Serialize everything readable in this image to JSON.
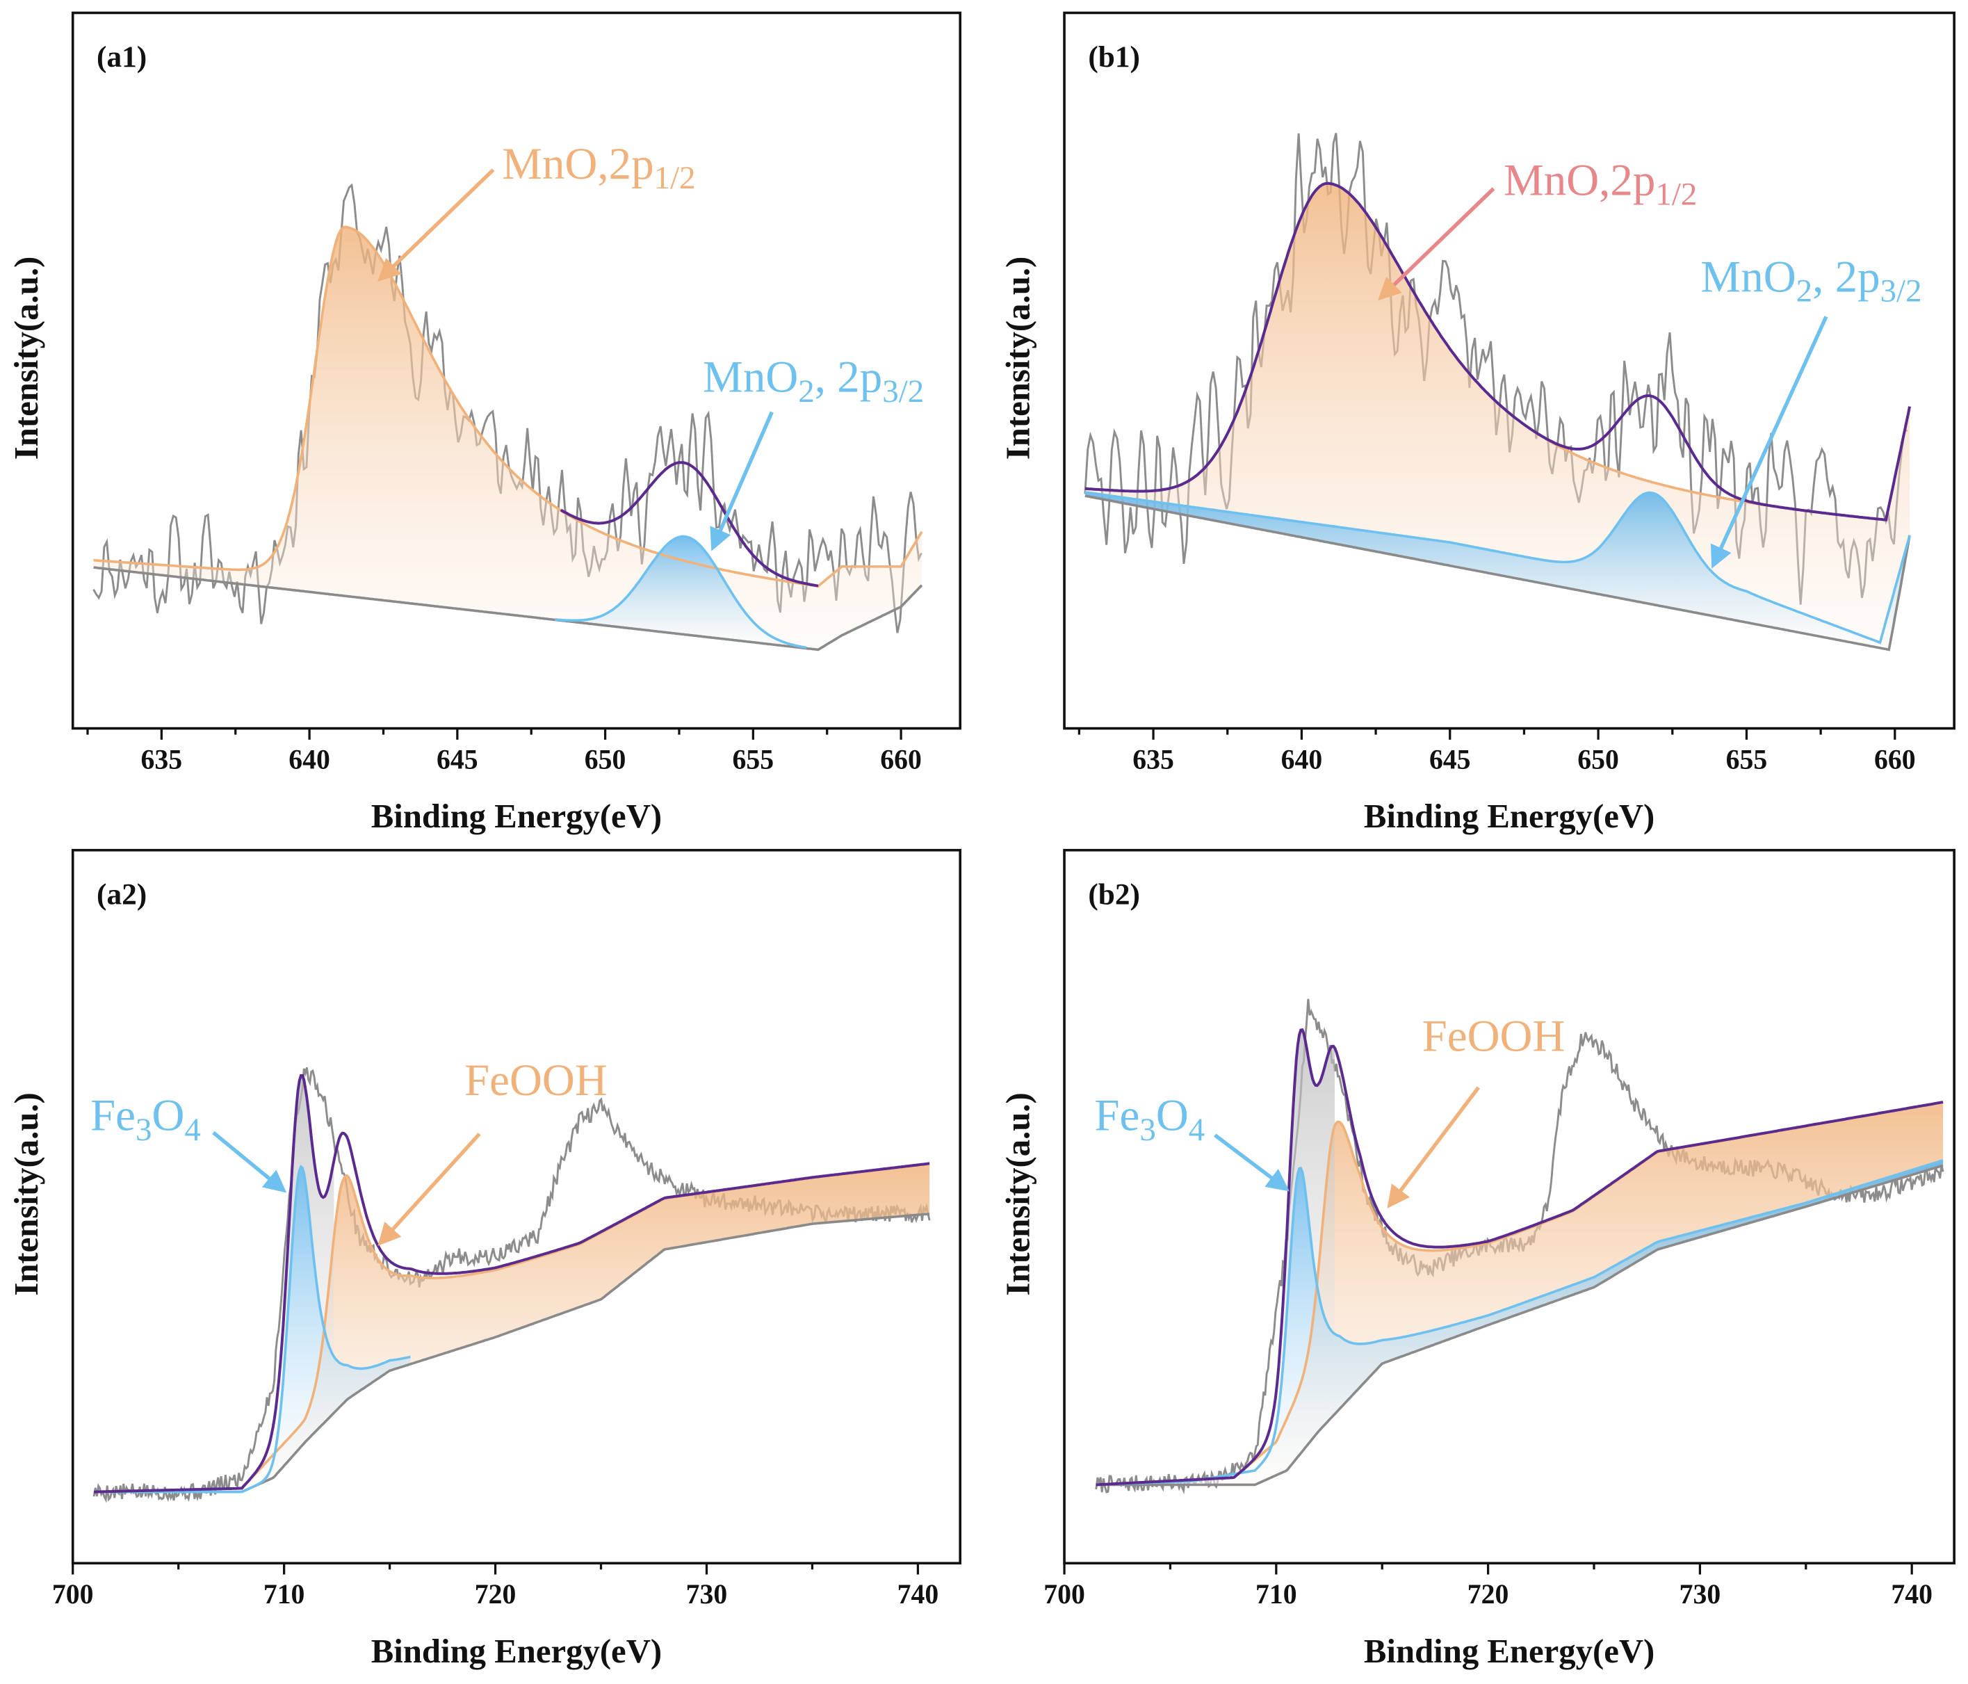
{
  "colors": {
    "raw": "#8c8c8c",
    "background": "#8a8a8a",
    "orange": "#f0b27a",
    "blue": "#6ec1ee",
    "envelope": "#5b2a8f",
    "pink": "#e8878a",
    "axis": "#111111"
  },
  "chart_data": [
    {
      "id": "a1",
      "type": "line",
      "label": "(a1)",
      "xlabel": "Binding Energy(eV)",
      "ylabel": "Intensity(a.u.)",
      "xlim": [
        632,
        662
      ],
      "ylim": [
        0,
        1
      ],
      "xticks": [
        635,
        640,
        645,
        650,
        655,
        660
      ],
      "minor_step": 2.5,
      "range": [
        632.7,
        660.7
      ],
      "background": [
        [
          632.7,
          0.225
        ],
        [
          657.2,
          0.11
        ],
        [
          658,
          0.13
        ],
        [
          660,
          0.17
        ],
        [
          660.7,
          0.2
        ]
      ],
      "components": [
        {
          "name": "MnO, 2p1/2",
          "color": "#f0b27a",
          "range": [
            632.7,
            660.7
          ],
          "baseline": [
            [
              632.7,
              0.235
            ],
            [
              645,
              0.2
            ],
            [
              657.2,
              0.17
            ],
            [
              658,
              0.2
            ],
            [
              660,
              0.205
            ],
            [
              660.7,
              0.255
            ]
          ],
          "peak": {
            "center": 641.2,
            "amp": 0.49,
            "left": {
              "type": "gauss",
              "w": 1.0
            },
            "right": {
              "type": "lorentz",
              "w": 4.0
            }
          }
        },
        {
          "name": "MnO2, 2p3/2",
          "color": "#6ec1ee",
          "range": [
            648.3,
            656.8
          ],
          "baseline": [
            [
              632.7,
              0.225
            ],
            [
              657.2,
              0.11
            ]
          ],
          "peak": {
            "center": 652.7,
            "amp": 0.137,
            "left": {
              "type": "gauss",
              "w": 1.3
            },
            "right": {
              "type": "gauss",
              "w": 1.3
            }
          }
        }
      ],
      "envelope": {
        "range": [
          648.5,
          657.2
        ],
        "extra_peak": null
      },
      "raw": {
        "points": null,
        "noise": 0.11,
        "seed": 11
      },
      "annotations": [
        {
          "parts": [
            {
              "t": "MnO,2p"
            },
            {
              "t": "1/2",
              "sub": true
            }
          ],
          "color": "#f0b27a"
        },
        {
          "parts": [
            {
              "t": "MnO"
            },
            {
              "t": "2",
              "sub": true
            },
            {
              "t": ", 2p"
            },
            {
              "t": "3/2",
              "sub": true
            }
          ],
          "color": "#6ec1ee"
        }
      ]
    },
    {
      "id": "b1",
      "type": "line",
      "label": "(b1)",
      "xlabel": "Binding Energy(eV)",
      "ylabel": "Intensity(a.u.)",
      "xlim": [
        632,
        662
      ],
      "ylim": [
        0,
        1
      ],
      "xticks": [
        635,
        640,
        645,
        650,
        655,
        660
      ],
      "minor_step": 2.5,
      "range": [
        632.7,
        660.5
      ],
      "background": [
        [
          632.7,
          0.325
        ],
        [
          659.8,
          0.11
        ],
        [
          660.2,
          0.2
        ],
        [
          660.5,
          0.27
        ]
      ],
      "components": [
        {
          "name": "MnO, 2p1/2",
          "color": "#f0b27a",
          "range": [
            632.7,
            660.5
          ],
          "baseline": [
            [
              632.7,
              0.335
            ],
            [
              645,
              0.3
            ],
            [
              659.7,
              0.27
            ],
            [
              660.5,
              0.43
            ]
          ],
          "peak": {
            "center": 640.9,
            "amp": 0.45,
            "left": {
              "type": "gauss",
              "w": 1.9
            },
            "right": {
              "type": "lorentz",
              "w": 4.2
            }
          }
        },
        {
          "name": "MnO2, 2p3/2",
          "color": "#6ec1ee",
          "range": [
            632.7,
            660.5
          ],
          "baseline": [
            [
              632.7,
              0.33
            ],
            [
              645,
              0.26
            ],
            [
              650,
              0.22
            ],
            [
              655,
              0.19
            ],
            [
              659.5,
              0.12
            ],
            [
              660.5,
              0.27
            ]
          ],
          "peak": {
            "center": 651.8,
            "amp": 0.12,
            "left": {
              "type": "gauss",
              "w": 1.1
            },
            "right": {
              "type": "gauss",
              "w": 1.1
            }
          }
        }
      ],
      "envelope": {
        "range": [
          632.7,
          660.5
        ],
        "extra_peak": null
      },
      "raw": {
        "points": null,
        "noise": 0.15,
        "seed": 29
      },
      "annotations": [
        {
          "parts": [
            {
              "t": "MnO,2p"
            },
            {
              "t": "1/2",
              "sub": true
            }
          ],
          "color": "#e8878a"
        },
        {
          "parts": [
            {
              "t": "MnO"
            },
            {
              "t": "2",
              "sub": true
            },
            {
              "t": ", 2p"
            },
            {
              "t": "3/2",
              "sub": true
            }
          ],
          "color": "#6ec1ee"
        }
      ]
    },
    {
      "id": "a2",
      "type": "line",
      "label": "(a2)",
      "xlabel": "Binding Energy(eV)",
      "ylabel": "Intensity(a.u.)",
      "xlim": [
        700,
        742
      ],
      "ylim": [
        0,
        1
      ],
      "xticks": [
        700,
        710,
        720,
        730,
        740
      ],
      "minor_step": 5,
      "range": [
        701,
        740.6
      ],
      "background": [
        [
          701,
          0.1
        ],
        [
          708,
          0.1
        ],
        [
          709.5,
          0.12
        ],
        [
          711,
          0.17
        ],
        [
          713,
          0.23
        ],
        [
          715,
          0.27
        ],
        [
          720,
          0.317
        ],
        [
          725,
          0.37
        ],
        [
          728,
          0.44
        ],
        [
          735,
          0.476
        ],
        [
          740.6,
          0.49
        ]
      ],
      "components": [
        {
          "name": "FeOOH",
          "color": "#f0b27a",
          "range": [
            701,
            740.6
          ],
          "baseline": [
            [
              701,
              0.1
            ],
            [
              708,
              0.105
            ],
            [
              711,
              0.2
            ],
            [
              713,
              0.32
            ],
            [
              716,
              0.375
            ],
            [
              720,
              0.405
            ],
            [
              724,
              0.445
            ],
            [
              728,
              0.51
            ],
            [
              735,
              0.54
            ],
            [
              740.6,
              0.56
            ]
          ],
          "peak": {
            "center": 712.8,
            "amp": 0.23,
            "left": {
              "type": "gauss",
              "w": 0.6
            },
            "right": {
              "type": "lorentz",
              "w": 1.2
            }
          }
        },
        {
          "name": "Fe3O4",
          "color": "#6ec1ee",
          "range": [
            701,
            716
          ],
          "baseline": [
            [
              701,
              0.1
            ],
            [
              708,
              0.1
            ],
            [
              709.5,
              0.12
            ],
            [
              711,
              0.15
            ],
            [
              713,
              0.23
            ],
            [
              715,
              0.27
            ],
            [
              716,
              0.28
            ]
          ],
          "peak": {
            "center": 710.8,
            "amp": 0.41,
            "left": {
              "type": "gauss",
              "w": 0.55
            },
            "right": {
              "type": "lorentz",
              "w": 0.8
            }
          }
        }
      ],
      "envelope": {
        "range": [
          701,
          740.6
        ],
        "extra_peak": {
          "center": 710.9,
          "amp": 0.08,
          "left": {
            "type": "gauss",
            "w": 0.8
          },
          "right": {
            "type": "gauss",
            "w": 0.9
          }
        }
      },
      "raw": {
        "points": [
          [
            701,
            0.1
          ],
          [
            706,
            0.1
          ],
          [
            708,
            0.12
          ],
          [
            709.5,
            0.25
          ],
          [
            710.5,
            0.6
          ],
          [
            711,
            0.695
          ],
          [
            711.8,
            0.66
          ],
          [
            712.5,
            0.58
          ],
          [
            713.5,
            0.46
          ],
          [
            715,
            0.41
          ],
          [
            716.5,
            0.395
          ],
          [
            718,
            0.43
          ],
          [
            720,
            0.43
          ],
          [
            722,
            0.46
          ],
          [
            723,
            0.55
          ],
          [
            724,
            0.62
          ],
          [
            725,
            0.64
          ],
          [
            726,
            0.6
          ],
          [
            727,
            0.56
          ],
          [
            728.5,
            0.53
          ],
          [
            730,
            0.51
          ],
          [
            732,
            0.505
          ],
          [
            735,
            0.49
          ],
          [
            738,
            0.49
          ],
          [
            740.6,
            0.49
          ]
        ],
        "noise": 0.012,
        "seed": 5
      },
      "annotations": [
        {
          "parts": [
            {
              "t": "Fe"
            },
            {
              "t": "3",
              "sub": true
            },
            {
              "t": "O"
            },
            {
              "t": "4",
              "sub": true
            }
          ],
          "color": "#6ec1ee"
        },
        {
          "parts": [
            {
              "t": "FeOOH"
            }
          ],
          "color": "#f0b27a"
        }
      ]
    },
    {
      "id": "b2",
      "type": "line",
      "label": "(b2)",
      "xlabel": "Binding Energy(eV)",
      "ylabel": "Intensity(a.u.)",
      "xlim": [
        700,
        742
      ],
      "ylim": [
        0,
        1
      ],
      "xticks": [
        700,
        710,
        720,
        730,
        740
      ],
      "minor_step": 5,
      "range": [
        701.5,
        741.5
      ],
      "background": [
        [
          701.5,
          0.11
        ],
        [
          709,
          0.11
        ],
        [
          710.5,
          0.13
        ],
        [
          712,
          0.185
        ],
        [
          715,
          0.28
        ],
        [
          720,
          0.334
        ],
        [
          725,
          0.387
        ],
        [
          728,
          0.44
        ],
        [
          735,
          0.5
        ],
        [
          741.5,
          0.558
        ]
      ],
      "components": [
        {
          "name": "FeOOH",
          "color": "#f0b27a",
          "range": [
            701.5,
            741.5
          ],
          "baseline": [
            [
              701.5,
              0.11
            ],
            [
              708,
              0.12
            ],
            [
              710,
              0.17
            ],
            [
              712,
              0.3
            ],
            [
              714,
              0.39
            ],
            [
              716.5,
              0.41
            ],
            [
              720,
              0.44
            ],
            [
              724,
              0.49
            ],
            [
              728,
              0.575
            ],
            [
              735,
              0.612
            ],
            [
              741.5,
              0.646
            ]
          ],
          "peak": {
            "center": 712.8,
            "amp": 0.28,
            "left": {
              "type": "gauss",
              "w": 0.6
            },
            "right": {
              "type": "lorentz",
              "w": 1.3
            }
          }
        },
        {
          "name": "Fe3O4",
          "color": "#6ec1ee",
          "range": [
            701.5,
            741.5
          ],
          "baseline": [
            [
              701.5,
              0.11
            ],
            [
              706,
              0.115
            ],
            [
              709,
              0.13
            ],
            [
              711,
              0.19
            ],
            [
              713,
              0.27
            ],
            [
              715,
              0.3
            ],
            [
              720,
              0.345
            ],
            [
              725,
              0.4
            ],
            [
              728,
              0.45
            ],
            [
              735,
              0.505
            ],
            [
              741.5,
              0.565
            ]
          ],
          "peak": {
            "center": 711.1,
            "amp": 0.36,
            "left": {
              "type": "gauss",
              "w": 0.5
            },
            "right": {
              "type": "lorentz",
              "w": 0.75
            }
          }
        }
      ],
      "envelope": {
        "range": [
          701.5,
          741.5
        ],
        "extra_peak": {
          "center": 711.3,
          "amp": 0.14,
          "left": {
            "type": "gauss",
            "w": 0.8
          },
          "right": {
            "type": "gauss",
            "w": 1.0
          }
        }
      },
      "raw": {
        "points": [
          [
            701.5,
            0.11
          ],
          [
            707,
            0.115
          ],
          [
            709,
            0.15
          ],
          [
            710.5,
            0.45
          ],
          [
            711.5,
            0.78
          ],
          [
            712.3,
            0.74
          ],
          [
            713.2,
            0.66
          ],
          [
            714.2,
            0.52
          ],
          [
            715.5,
            0.44
          ],
          [
            717,
            0.41
          ],
          [
            718.5,
            0.43
          ],
          [
            720,
            0.445
          ],
          [
            722,
            0.45
          ],
          [
            722.8,
            0.5
          ],
          [
            723.5,
            0.66
          ],
          [
            724.5,
            0.74
          ],
          [
            725.5,
            0.72
          ],
          [
            727,
            0.64
          ],
          [
            728.5,
            0.58
          ],
          [
            730,
            0.56
          ],
          [
            732,
            0.555
          ],
          [
            734,
            0.55
          ],
          [
            736,
            0.52
          ],
          [
            738,
            0.515
          ],
          [
            741.5,
            0.55
          ]
        ],
        "noise": 0.012,
        "seed": 7
      },
      "annotations": [
        {
          "parts": [
            {
              "t": "Fe"
            },
            {
              "t": "3",
              "sub": true
            },
            {
              "t": "O"
            },
            {
              "t": "4",
              "sub": true
            }
          ],
          "color": "#6ec1ee"
        },
        {
          "parts": [
            {
              "t": "FeOOH"
            }
          ],
          "color": "#f0b27a"
        }
      ]
    }
  ]
}
